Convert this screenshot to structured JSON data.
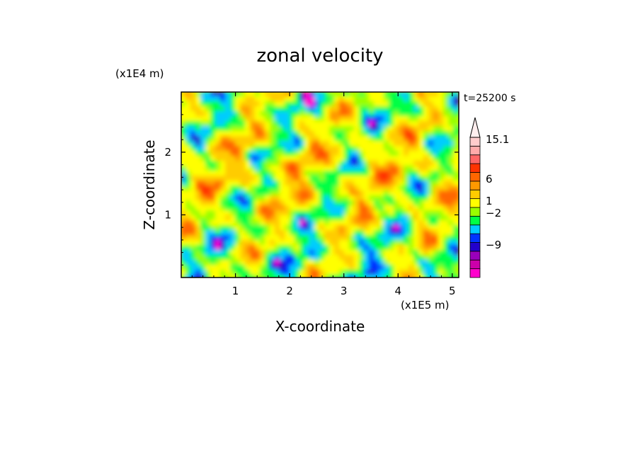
{
  "chart_data": {
    "type": "heatmap",
    "title": "zonal velocity",
    "xlabel": "X-coordinate",
    "ylabel": "Z-coordinate",
    "x_unit": "(x1E5 m)",
    "y_unit": "(x1E4 m)",
    "time_label": "t=25200 s",
    "xlim": [
      0,
      5.12
    ],
    "ylim": [
      0,
      2.96
    ],
    "x_ticks": [
      "1",
      "2",
      "3",
      "4",
      "5"
    ],
    "y_ticks": [
      "1",
      "2"
    ],
    "colorbar": {
      "labels": [
        "15.1",
        "6",
        "1",
        "−2",
        "−9"
      ],
      "colors": [
        "#ff00cc",
        "#cc00aa",
        "#9900bb",
        "#2200cc",
        "#0033ff",
        "#00ccff",
        "#00ff44",
        "#99ff00",
        "#ffff00",
        "#ffcc00",
        "#ff9900",
        "#ff6600",
        "#ff3300",
        "#ff6666",
        "#ffaaaa",
        "#ffcccc"
      ],
      "extend_top": true
    }
  }
}
